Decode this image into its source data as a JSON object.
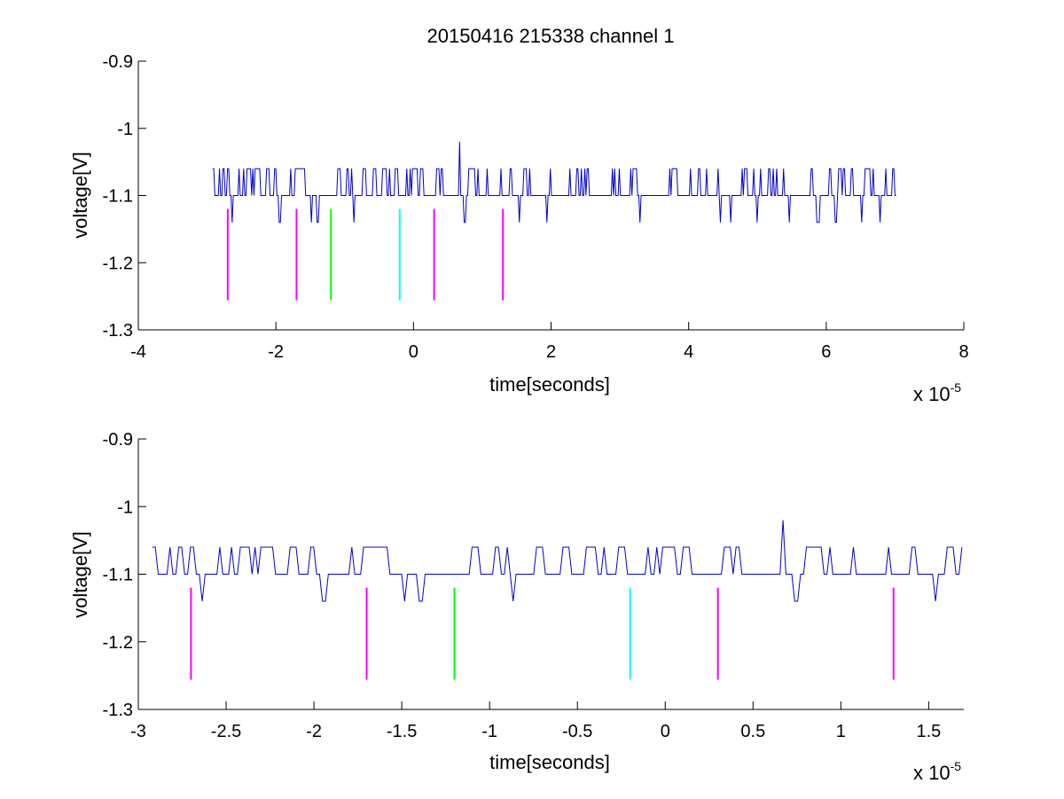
{
  "chart_data": [
    {
      "type": "line",
      "title": "20150416 215338 channel 1",
      "xlabel": "time[seconds]",
      "ylabel": "voltage[V]",
      "x_multiplier_label": "x 10",
      "x_multiplier_exponent": "-5",
      "xlim": [
        -4,
        8
      ],
      "ylim": [
        -1.3,
        -0.9
      ],
      "xticks": [
        -4,
        -2,
        0,
        2,
        4,
        6,
        8
      ],
      "xtick_labels": [
        "-4",
        "-2",
        "0",
        "2",
        "4",
        "6",
        "8"
      ],
      "yticks": [
        -1.3,
        -1.2,
        -1.1,
        -1.0,
        -0.9
      ],
      "ytick_labels": [
        "-1.3",
        "-1.2",
        "-1.1",
        "-1",
        "-0.9"
      ],
      "grid": false,
      "signal": {
        "color": "#0000cc",
        "x_start": -2.92,
        "x_end": 7.03,
        "baseline": -1.1,
        "levels": [
          -1.14,
          -1.1,
          -1.06
        ],
        "peak": {
          "x": 0.67,
          "y": -1.02
        }
      },
      "markers": [
        {
          "x": -2.7,
          "y_top": -1.12,
          "y_bottom": -1.256,
          "color": "#ff00ff"
        },
        {
          "x": -1.7,
          "y_top": -1.12,
          "y_bottom": -1.256,
          "color": "#ff00ff"
        },
        {
          "x": -1.2,
          "y_top": -1.12,
          "y_bottom": -1.256,
          "color": "#00ff00"
        },
        {
          "x": -0.2,
          "y_top": -1.12,
          "y_bottom": -1.256,
          "color": "#00ffff"
        },
        {
          "x": 0.3,
          "y_top": -1.12,
          "y_bottom": -1.256,
          "color": "#ff00ff"
        },
        {
          "x": 1.3,
          "y_top": -1.12,
          "y_bottom": -1.256,
          "color": "#ff00ff"
        }
      ]
    },
    {
      "type": "line",
      "title": "",
      "xlabel": "time[seconds]",
      "ylabel": "voltage[V]",
      "x_multiplier_label": "x 10",
      "x_multiplier_exponent": "-5",
      "xlim": [
        -3.0,
        1.7
      ],
      "ylim": [
        -1.3,
        -0.9
      ],
      "xticks": [
        -3,
        -2.5,
        -2,
        -1.5,
        -1,
        -0.5,
        0,
        0.5,
        1,
        1.5
      ],
      "xtick_labels": [
        "-3",
        "-2.5",
        "-2",
        "-1.5",
        "-1",
        "-0.5",
        "0",
        "0.5",
        "1",
        "1.5"
      ],
      "yticks": [
        -1.3,
        -1.2,
        -1.1,
        -1.0,
        -0.9
      ],
      "ytick_labels": [
        "-1.3",
        "-1.2",
        "-1.1",
        "-1",
        "-0.9"
      ],
      "grid": false,
      "signal": {
        "color": "#0000cc",
        "x_start": -2.92,
        "x_end": 1.7,
        "baseline": -1.1,
        "levels": [
          -1.14,
          -1.1,
          -1.06
        ],
        "peak": {
          "x": 0.67,
          "y": -1.02
        }
      },
      "markers": [
        {
          "x": -2.7,
          "y_top": -1.12,
          "y_bottom": -1.256,
          "color": "#ff00ff"
        },
        {
          "x": -1.7,
          "y_top": -1.12,
          "y_bottom": -1.256,
          "color": "#ff00ff"
        },
        {
          "x": -1.2,
          "y_top": -1.12,
          "y_bottom": -1.256,
          "color": "#00ff00"
        },
        {
          "x": -0.2,
          "y_top": -1.12,
          "y_bottom": -1.256,
          "color": "#00ffff"
        },
        {
          "x": 0.3,
          "y_top": -1.12,
          "y_bottom": -1.256,
          "color": "#ff00ff"
        },
        {
          "x": 1.3,
          "y_top": -1.12,
          "y_bottom": -1.256,
          "color": "#ff00ff"
        }
      ]
    }
  ]
}
